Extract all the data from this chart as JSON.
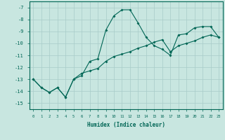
{
  "xlabel": "Humidex (Indice chaleur)",
  "background_color": "#c8e6e0",
  "grid_color": "#a8ccc8",
  "line_color": "#006655",
  "xlim": [
    -0.5,
    23.5
  ],
  "ylim": [
    -15.5,
    -6.5
  ],
  "yticks": [
    -15,
    -14,
    -13,
    -12,
    -11,
    -10,
    -9,
    -8,
    -7
  ],
  "xticks": [
    0,
    1,
    2,
    3,
    4,
    5,
    6,
    7,
    8,
    9,
    10,
    11,
    12,
    13,
    14,
    15,
    16,
    17,
    18,
    19,
    20,
    21,
    22,
    23
  ],
  "line1_x": [
    0,
    1,
    2,
    3,
    4,
    5,
    6,
    7,
    8,
    9,
    10,
    11,
    12,
    13,
    14,
    15,
    16,
    17,
    18,
    19,
    20,
    21,
    22,
    23
  ],
  "line1_y": [
    -13,
    -13.7,
    -14.1,
    -13.7,
    -14.5,
    -13.0,
    -12.7,
    -11.5,
    -11.3,
    -8.9,
    -7.7,
    -7.2,
    -7.2,
    -8.3,
    -9.5,
    -10.2,
    -10.5,
    -11.0,
    -9.3,
    -9.2,
    -8.7,
    -8.6,
    -8.6,
    -9.5
  ],
  "line2_x": [
    0,
    1,
    2,
    3,
    4,
    5,
    6,
    7,
    8,
    9,
    10,
    11,
    12,
    13,
    14,
    15,
    16,
    17,
    18,
    19,
    20,
    21,
    22,
    23
  ],
  "line2_y": [
    -13,
    -13.7,
    -14.1,
    -13.7,
    -14.5,
    -13.0,
    -12.5,
    -12.3,
    -12.1,
    -11.5,
    -11.1,
    -10.9,
    -10.7,
    -10.4,
    -10.2,
    -9.9,
    -9.7,
    -10.7,
    -10.2,
    -10.0,
    -9.8,
    -9.5,
    -9.3,
    -9.5
  ]
}
